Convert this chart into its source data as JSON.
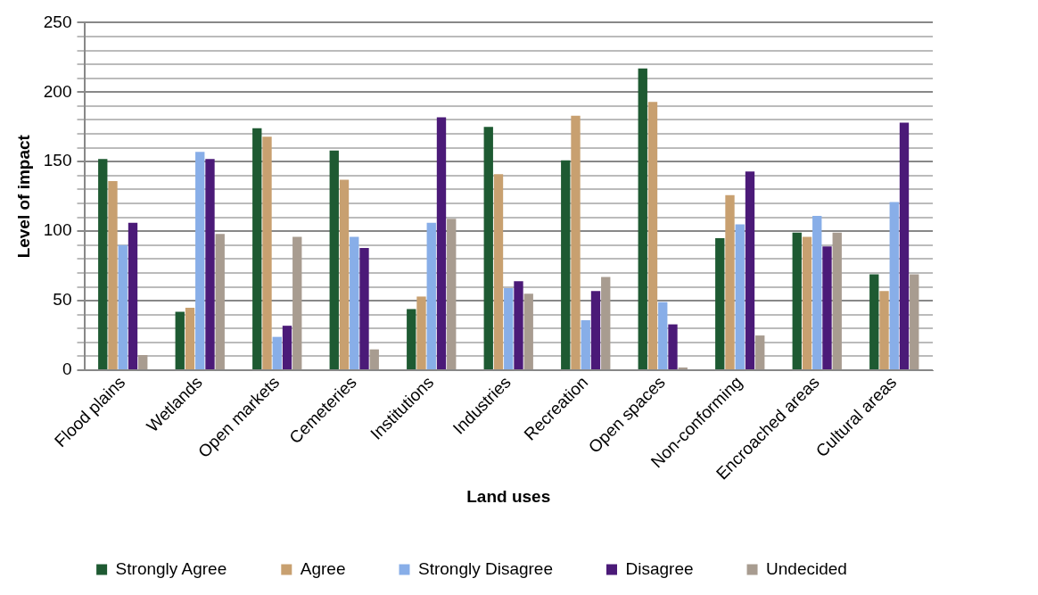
{
  "chart_data": {
    "type": "bar",
    "xlabel": "Land uses",
    "ylabel": "Level of impact",
    "categories": [
      "Flood plains",
      "Wetlands",
      "Open markets",
      "Cemeteries",
      "Institutions",
      "Industries",
      "Recreation",
      "Open spaces",
      "Non-conforming",
      "Encroached areas",
      "Cultural areas"
    ],
    "series": [
      {
        "name": "Strongly Agree",
        "color": "#1e5a32",
        "values": [
          152,
          42,
          174,
          158,
          44,
          175,
          151,
          217,
          95,
          99,
          69
        ]
      },
      {
        "name": "Agree",
        "color": "#c8a070",
        "values": [
          136,
          45,
          168,
          137,
          53,
          141,
          183,
          193,
          126,
          96,
          57
        ]
      },
      {
        "name": "Strongly Disagree",
        "color": "#88aee8",
        "values": [
          90,
          157,
          24,
          96,
          106,
          59,
          36,
          49,
          105,
          111,
          121
        ]
      },
      {
        "name": "Disagree",
        "color": "#4b1a78",
        "values": [
          106,
          152,
          32,
          88,
          182,
          64,
          57,
          33,
          143,
          89,
          178
        ]
      },
      {
        "name": "Undecided",
        "color": "#a89c90",
        "values": [
          11,
          98,
          96,
          15,
          109,
          55,
          67,
          2,
          25,
          99,
          69
        ]
      }
    ],
    "ylim": [
      0,
      250
    ],
    "yticks": [
      0,
      {
        "value": 10,
        "label": null
      },
      {
        "value": 20,
        "label": null
      },
      {
        "value": 30,
        "label": null
      },
      {
        "value": 40,
        "label": null
      },
      50,
      {
        "value": 60,
        "label": null
      },
      {
        "value": 70,
        "label": null
      },
      {
        "value": 80,
        "label": null
      },
      {
        "value": 90,
        "label": null
      },
      100,
      {
        "value": 110,
        "label": null
      },
      {
        "value": 120,
        "label": null
      },
      {
        "value": 130,
        "label": null
      },
      {
        "value": 140,
        "label": null
      },
      150,
      {
        "value": 160,
        "label": null
      },
      {
        "value": 170,
        "label": null
      },
      {
        "value": 180,
        "label": null
      },
      {
        "value": 190,
        "label": null
      },
      200,
      {
        "value": 210,
        "label": null
      },
      {
        "value": 220,
        "label": null
      },
      {
        "value": 230,
        "label": null
      },
      {
        "value": 240,
        "label": null
      },
      250
    ],
    "grid": "y",
    "legend": "bottom"
  }
}
